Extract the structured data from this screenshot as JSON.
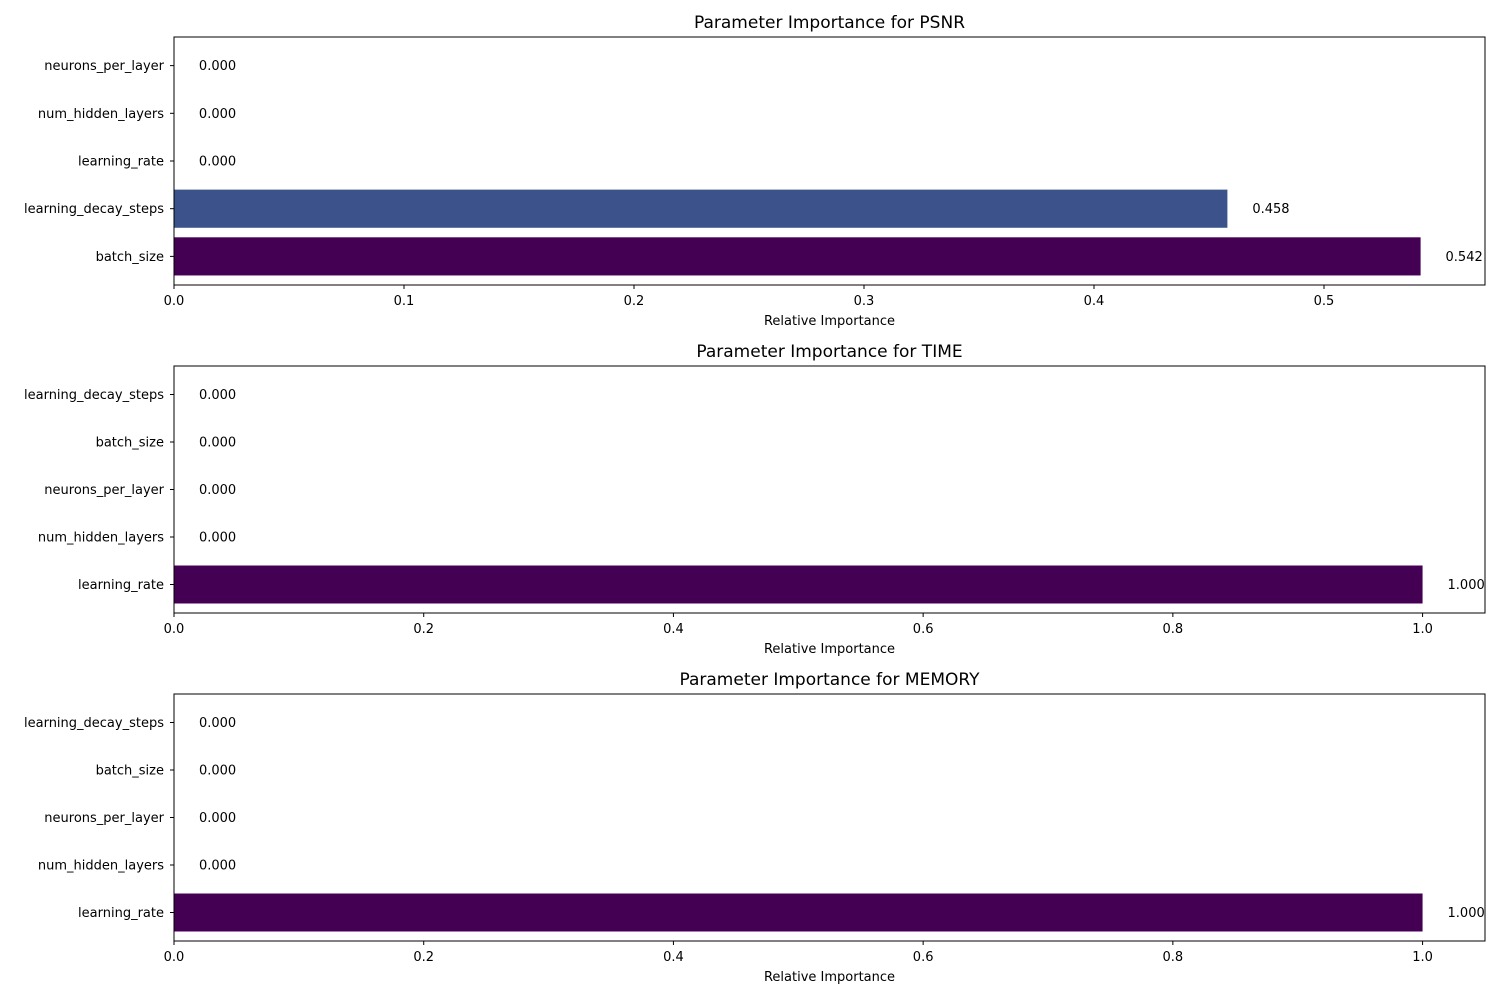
{
  "chart_data": [
    {
      "type": "bar",
      "orientation": "horizontal",
      "title": "Parameter Importance for PSNR",
      "xlabel": "Relative Importance",
      "ylabel": "",
      "xlim": [
        0,
        0.57
      ],
      "xticks": [
        0.0,
        0.1,
        0.2,
        0.3,
        0.4,
        0.5
      ],
      "xtick_labels": [
        "0.0",
        "0.1",
        "0.2",
        "0.3",
        "0.4",
        "0.5"
      ],
      "categories": [
        "batch_size",
        "learning_decay_steps",
        "learning_rate",
        "num_hidden_layers",
        "neurons_per_layer"
      ],
      "values": [
        0.542,
        0.458,
        0.0,
        0.0,
        0.0
      ],
      "value_labels": [
        "0.542",
        "0.458",
        "0.000",
        "0.000",
        "0.000"
      ],
      "colors": [
        "#440154",
        "#3b528b",
        "#21918c",
        "#5ec962",
        "#fde725"
      ],
      "grid": false,
      "legend": "none"
    },
    {
      "type": "bar",
      "orientation": "horizontal",
      "title": "Parameter Importance for TIME",
      "xlabel": "Relative Importance",
      "ylabel": "",
      "xlim": [
        0,
        1.05
      ],
      "xticks": [
        0.0,
        0.2,
        0.4,
        0.6,
        0.8,
        1.0
      ],
      "xtick_labels": [
        "0.0",
        "0.2",
        "0.4",
        "0.6",
        "0.8",
        "1.0"
      ],
      "categories": [
        "learning_rate",
        "num_hidden_layers",
        "neurons_per_layer",
        "batch_size",
        "learning_decay_steps"
      ],
      "values": [
        1.0,
        0.0,
        0.0,
        0.0,
        0.0
      ],
      "value_labels": [
        "1.000",
        "0.000",
        "0.000",
        "0.000",
        "0.000"
      ],
      "colors": [
        "#440154",
        "#3b528b",
        "#21918c",
        "#5ec962",
        "#fde725"
      ],
      "grid": false,
      "legend": "none"
    },
    {
      "type": "bar",
      "orientation": "horizontal",
      "title": "Parameter Importance for MEMORY",
      "xlabel": "Relative Importance",
      "ylabel": "",
      "xlim": [
        0,
        1.05
      ],
      "xticks": [
        0.0,
        0.2,
        0.4,
        0.6,
        0.8,
        1.0
      ],
      "xtick_labels": [
        "0.0",
        "0.2",
        "0.4",
        "0.6",
        "0.8",
        "1.0"
      ],
      "categories": [
        "learning_rate",
        "num_hidden_layers",
        "neurons_per_layer",
        "batch_size",
        "learning_decay_steps"
      ],
      "values": [
        1.0,
        0.0,
        0.0,
        0.0,
        0.0
      ],
      "value_labels": [
        "1.000",
        "0.000",
        "0.000",
        "0.000",
        "0.000"
      ],
      "colors": [
        "#440154",
        "#3b528b",
        "#21918c",
        "#5ec962",
        "#fde725"
      ],
      "grid": false,
      "legend": "none"
    }
  ]
}
